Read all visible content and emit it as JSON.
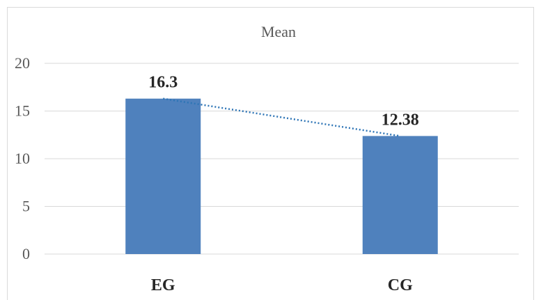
{
  "chart_data": {
    "type": "bar",
    "title": "Mean",
    "categories": [
      "EG",
      "CG"
    ],
    "values": [
      16.3,
      12.38
    ],
    "data_labels": [
      "16.3",
      "12.38"
    ],
    "ylim": [
      0,
      20
    ],
    "yticks": [
      "0",
      "5",
      "10",
      "15",
      "20"
    ],
    "ytick_values": [
      0,
      5,
      10,
      15,
      20
    ],
    "grid": true,
    "trendline": "dotted",
    "colors": {
      "bar": "#4f81bd",
      "trendline": "#2e75b6",
      "grid": "#d9d9d9"
    }
  }
}
